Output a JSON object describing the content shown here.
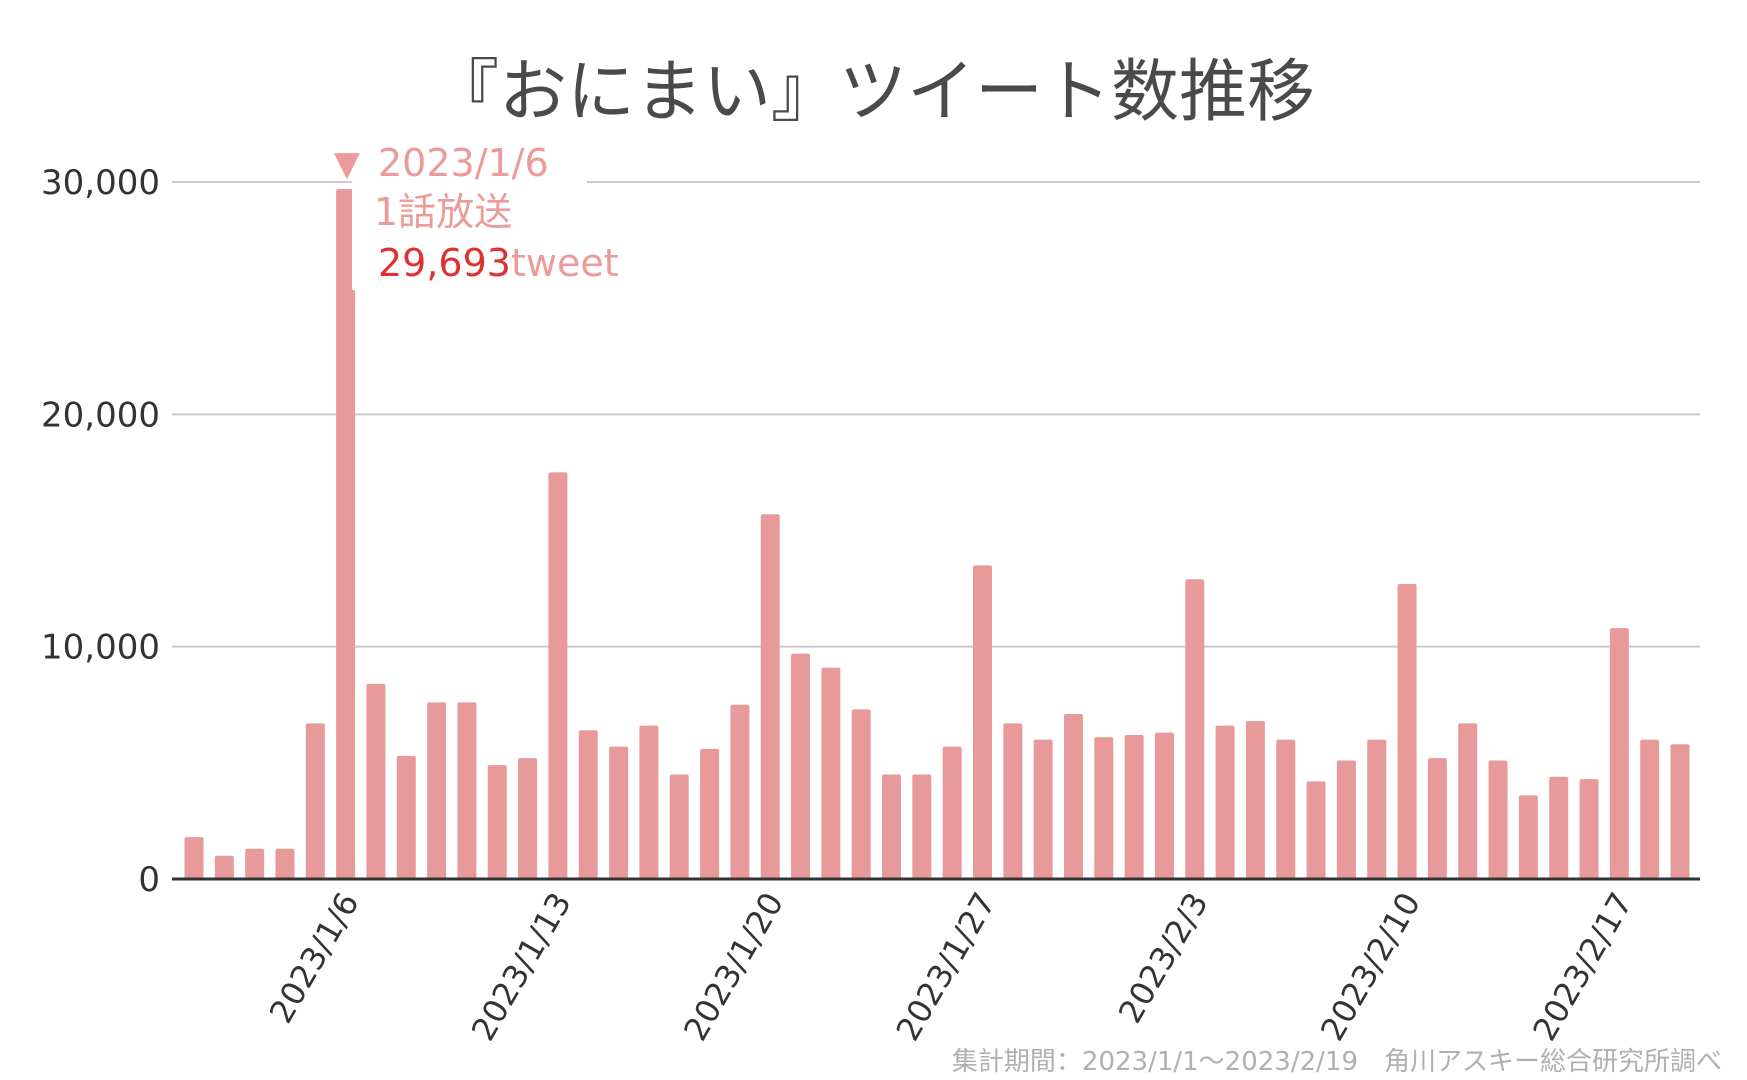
{
  "chart_data": {
    "type": "bar",
    "title": "『おにまい』ツイート数推移",
    "x": [
      "2023/1/1",
      "2023/1/2",
      "2023/1/3",
      "2023/1/4",
      "2023/1/5",
      "2023/1/6",
      "2023/1/7",
      "2023/1/8",
      "2023/1/9",
      "2023/1/10",
      "2023/1/11",
      "2023/1/12",
      "2023/1/13",
      "2023/1/14",
      "2023/1/15",
      "2023/1/16",
      "2023/1/17",
      "2023/1/18",
      "2023/1/19",
      "2023/1/20",
      "2023/1/21",
      "2023/1/22",
      "2023/1/23",
      "2023/1/24",
      "2023/1/25",
      "2023/1/26",
      "2023/1/27",
      "2023/1/28",
      "2023/1/29",
      "2023/1/30",
      "2023/1/31",
      "2023/2/1",
      "2023/2/2",
      "2023/2/3",
      "2023/2/4",
      "2023/2/5",
      "2023/2/6",
      "2023/2/7",
      "2023/2/8",
      "2023/2/9",
      "2023/2/10",
      "2023/2/11",
      "2023/2/12",
      "2023/2/13",
      "2023/2/14",
      "2023/2/15",
      "2023/2/16",
      "2023/2/17",
      "2023/2/18",
      "2023/2/19"
    ],
    "values": [
      1800,
      1000,
      1300,
      1300,
      6700,
      29693,
      8400,
      5300,
      7600,
      7600,
      4900,
      5200,
      17500,
      6400,
      5700,
      6600,
      4500,
      5600,
      7500,
      15700,
      9700,
      9100,
      7300,
      4500,
      4500,
      5700,
      13500,
      6700,
      6000,
      7100,
      6100,
      6200,
      6300,
      12900,
      6600,
      6800,
      6000,
      4200,
      5100,
      6000,
      12700,
      5200,
      6700,
      5100,
      3600,
      4400,
      4300,
      10800,
      6000,
      5800
    ],
    "x_tick_labels": [
      "2023/1/6",
      "2023/1/13",
      "2023/1/20",
      "2023/1/27",
      "2023/2/3",
      "2023/2/10",
      "2023/2/17"
    ],
    "y_ticks": [
      "0",
      "10,000",
      "20,000",
      "30,000"
    ],
    "ylim": [
      0,
      30000
    ],
    "xlabel": "",
    "ylabel": "",
    "grid": true,
    "bar_color": "#e89a9a",
    "annotation": {
      "date": "2023/1/6",
      "episode": "1話放送",
      "count": "29,693",
      "unit": "tweet",
      "marker": "▼"
    },
    "footnote": "集計期間：2023/1/1～2023/2/19　角川アスキー総合研究所調べ"
  }
}
